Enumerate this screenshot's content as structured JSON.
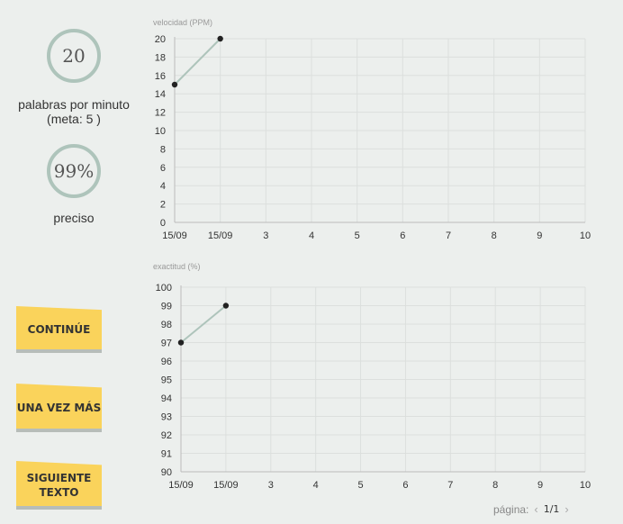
{
  "stats": {
    "wpm": {
      "value": "20",
      "label": "palabras por minuto",
      "goal": "(meta: 5 )"
    },
    "accuracy": {
      "value": "99%",
      "label": "preciso"
    }
  },
  "buttons": {
    "continue": "CONTINÚE",
    "again": "UNA VEZ MÁS",
    "next_text": "SIGUIENTE TEXTO"
  },
  "pagination": {
    "label": "página:",
    "count": "1/1"
  },
  "colors": {
    "line": "#aec4bb",
    "point": "#222222",
    "grid": "#dcdfdd",
    "button": "#fad35b"
  },
  "chart_data": [
    {
      "type": "line",
      "title": "velocidad (PPM)",
      "x_labels": [
        "15/09",
        "15/09",
        "3",
        "4",
        "5",
        "6",
        "7",
        "8",
        "9",
        "10"
      ],
      "series": [
        {
          "values": [
            15,
            20
          ]
        }
      ],
      "ylim": [
        0,
        20
      ],
      "yticks": [
        0,
        2,
        4,
        6,
        8,
        10,
        12,
        14,
        16,
        18,
        20
      ],
      "grid": true
    },
    {
      "type": "line",
      "title": "exactitud (%)",
      "x_labels": [
        "15/09",
        "15/09",
        "3",
        "4",
        "5",
        "6",
        "7",
        "8",
        "9",
        "10"
      ],
      "series": [
        {
          "values": [
            97,
            99
          ]
        }
      ],
      "ylim": [
        90,
        100
      ],
      "yticks": [
        90,
        91,
        92,
        93,
        94,
        95,
        96,
        97,
        98,
        99,
        100
      ],
      "grid": true
    }
  ]
}
